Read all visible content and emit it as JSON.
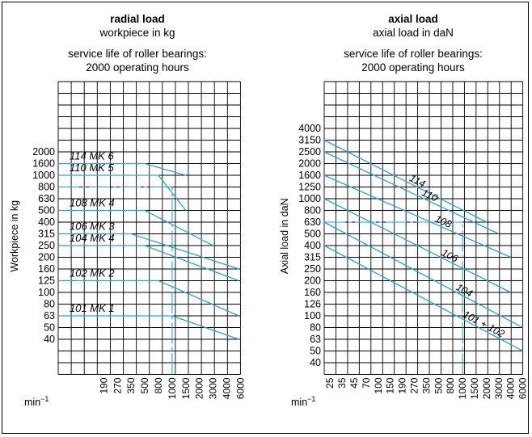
{
  "charts": [
    {
      "title": "radial load",
      "subtitle": "workpiece in kg",
      "note_line1": "service life of roller bearings:",
      "note_line2": "2000 operating hours"
    },
    {
      "title": "axial load",
      "subtitle": "axial load in daN",
      "note_line1": "service life of roller bearings:",
      "note_line2": "2000 operating hours"
    }
  ],
  "chart_data": [
    {
      "type": "line",
      "title": "radial load",
      "subtitle": "workpiece in kg",
      "ylabel": "Workpiece in kg",
      "xlabel": "min⁻¹",
      "x_ticks": [
        "190",
        "270",
        "350",
        "500",
        "800",
        "1000",
        "1500",
        "2000",
        "3000",
        "4000",
        "6000"
      ],
      "y_ticks": [
        "2000",
        "1600",
        "1000",
        "800",
        "630",
        "500",
        "400",
        "315",
        "250",
        "200",
        "160",
        "125",
        "100",
        "80",
        "63",
        "50",
        "40"
      ],
      "series": [
        {
          "name": "114 MK 6",
          "x": [
            "190",
            "500",
            "1500"
          ],
          "y": [
            "1600",
            "1600",
            "1000"
          ]
        },
        {
          "name": "110 MK 5",
          "x": [
            "190",
            "800",
            "1500"
          ],
          "y": [
            "1000",
            "1000",
            "500"
          ]
        },
        {
          "name": "108 MK 4",
          "x": [
            "190",
            "500",
            "3000"
          ],
          "y": [
            "500",
            "500",
            "250"
          ]
        },
        {
          "name": "106 MK 3",
          "x": [
            "190",
            "350",
            "6000"
          ],
          "y": [
            "315",
            "315",
            "160"
          ]
        },
        {
          "name": "104 MK 4",
          "x": [
            "190",
            "500",
            "6000"
          ],
          "y": [
            "250",
            "250",
            "125"
          ]
        },
        {
          "name": "102 MK 2",
          "x": [
            "190",
            "800",
            "6000"
          ],
          "y": [
            "125",
            "125",
            "63"
          ]
        },
        {
          "name": "101 MK 1",
          "x": [
            "190",
            "1000",
            "6000"
          ],
          "y": [
            "63",
            "63",
            "40"
          ]
        }
      ],
      "example_reading": {
        "x": "1000",
        "y": "800"
      },
      "grid": true
    },
    {
      "type": "line",
      "title": "axial load",
      "subtitle": "axial load in daN",
      "ylabel": "Axial load in daN",
      "xlabel": "min⁻¹",
      "x_ticks": [
        "25",
        "35",
        "45",
        "70",
        "100",
        "150",
        "190",
        "270",
        "350",
        "500",
        "800",
        "1000",
        "1500",
        "2000",
        "3000",
        "4000",
        "6000"
      ],
      "y_ticks": [
        "4000",
        "3150",
        "2500",
        "2000",
        "1600",
        "1250",
        "1000",
        "800",
        "630",
        "500",
        "400",
        "315",
        "250",
        "200",
        "160",
        "126",
        "100",
        "80",
        "63",
        "50",
        "40"
      ],
      "series": [
        {
          "name": "114",
          "x": [
            "25",
            "2000"
          ],
          "y": [
            "3150",
            "630"
          ]
        },
        {
          "name": "110",
          "x": [
            "25",
            "3000"
          ],
          "y": [
            "2500",
            "500"
          ]
        },
        {
          "name": "108",
          "x": [
            "25",
            "4000"
          ],
          "y": [
            "1600",
            "315"
          ]
        },
        {
          "name": "106",
          "x": [
            "25",
            "4000"
          ],
          "y": [
            "1000",
            "160"
          ]
        },
        {
          "name": "104",
          "x": [
            "25",
            "6000"
          ],
          "y": [
            "630",
            "80"
          ]
        },
        {
          "name": "101 + 102",
          "x": [
            "25",
            "6000"
          ],
          "y": [
            "400",
            "50"
          ]
        }
      ],
      "example_reading": {
        "x": "1000",
        "y": "630"
      },
      "grid": true
    }
  ]
}
